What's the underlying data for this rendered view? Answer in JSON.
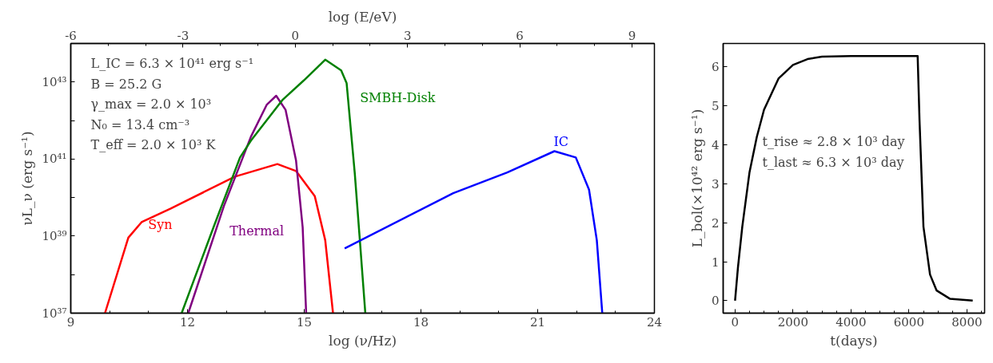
{
  "chart_data": [
    {
      "type": "line",
      "xlabel": "log (ν/Hz)",
      "x2label": "log (E/eV)",
      "ylabel": "νL_ν (erg s⁻¹)",
      "log": "y",
      "grid": false,
      "xlim": [
        9,
        24
      ],
      "xticks": [
        9,
        12,
        15,
        18,
        21,
        24
      ],
      "x2lim": [
        -6,
        9.6
      ],
      "x2ticks": [
        -6,
        -3,
        0,
        3,
        6,
        9
      ],
      "ylim": [
        1e+37,
        1e+44
      ],
      "yticks": [
        {
          "value": 1e+37,
          "label": "10³⁷"
        },
        {
          "value": 1e+38,
          "label": null
        },
        {
          "value": 1e+39,
          "label": "10³⁹"
        },
        {
          "value": 1e+40,
          "label": null
        },
        {
          "value": 1e+41,
          "label": "10⁴¹"
        },
        {
          "value": 1e+42,
          "label": null
        },
        {
          "value": 1e+43,
          "label": "10⁴³"
        },
        {
          "value": 1e+44,
          "label": null
        }
      ],
      "series": [
        {
          "name": "Syn",
          "color": "#ff0000",
          "x": [
            9.88,
            10.48,
            10.82,
            11.57,
            13.22,
            14.31,
            14.79,
            15.27,
            15.54,
            15.74
          ],
          "values": [
            1e+37,
            9.1e+38,
            2.3e+39,
            5.2e+39,
            3.5e+40,
            7.4e+40,
            4.9e+40,
            1.1e+40,
            7.8e+38,
            1e+37
          ]
        },
        {
          "name": "Thermal",
          "color": "#800080",
          "x": [
            12.02,
            12.94,
            13.63,
            14.04,
            14.28,
            14.52,
            14.79,
            14.96,
            15.05
          ],
          "values": [
            1e+37,
            6.2e+39,
            3.8e+41,
            2.6e+42,
            4.4e+42,
            1.9e+42,
            9.1e+40,
            1.7e+39,
            1e+37
          ]
        },
        {
          "name": "SMBH-Disk",
          "color": "#008000",
          "x": [
            11.85,
            12.67,
            13.35,
            13.63,
            14.45,
            14.99,
            15.54,
            15.95,
            16.09,
            16.3,
            16.43,
            16.57
          ],
          "values": [
            1e+37,
            1.7e+39,
            1.1e+41,
            3e+41,
            3.5e+42,
            1.1e+43,
            3.8e+43,
            2e+43,
            9.3e+42,
            4.2e+40,
            7.8e+38,
            1e+37
          ]
        },
        {
          "name": "IC",
          "color": "#0000ff",
          "x": [
            16.04,
            18.83,
            20.22,
            21.43,
            21.98,
            22.32,
            22.52,
            22.66
          ],
          "values": [
            4.8e+38,
            1.3e+40,
            4.5e+40,
            1.6e+41,
            1.1e+41,
            1.6e+40,
            7.8e+38,
            1e+37
          ]
        }
      ],
      "annotations": [
        "L_IC = 6.3 × 10⁴¹ erg s⁻¹",
        "B = 25.2 G",
        "γ_max = 2.0 × 10³",
        "N₀ = 13.4 cm⁻³",
        "T_eff = 2.0 × 10³ K"
      ]
    },
    {
      "type": "line",
      "xlabel": "t(days)",
      "ylabel": "L_bol(×10⁴² erg s⁻¹)",
      "grid": false,
      "xlim": [
        -410,
        8610
      ],
      "xticks": [
        0,
        2000,
        4000,
        6000,
        8000
      ],
      "ylim": [
        -0.32,
        6.6
      ],
      "yticks": [
        0,
        1,
        2,
        3,
        4,
        5,
        6
      ],
      "series": [
        {
          "color": "#000000",
          "x": [
            0,
            100,
            250,
            500,
            750,
            1000,
            1500,
            2000,
            2500,
            3000,
            4000,
            5000,
            6300,
            6364,
            6500,
            6727,
            6955,
            7409,
            8200
          ],
          "values": [
            0,
            0.85,
            1.9,
            3.3,
            4.2,
            4.9,
            5.7,
            6.05,
            6.2,
            6.26,
            6.28,
            6.28,
            6.28,
            4.64,
            1.9,
            0.67,
            0.26,
            0.05,
            0
          ]
        }
      ],
      "annotations": [
        "t_rise ≈ 2.8 × 10³ day",
        "t_last ≈ 6.3 × 10³ day"
      ]
    }
  ]
}
